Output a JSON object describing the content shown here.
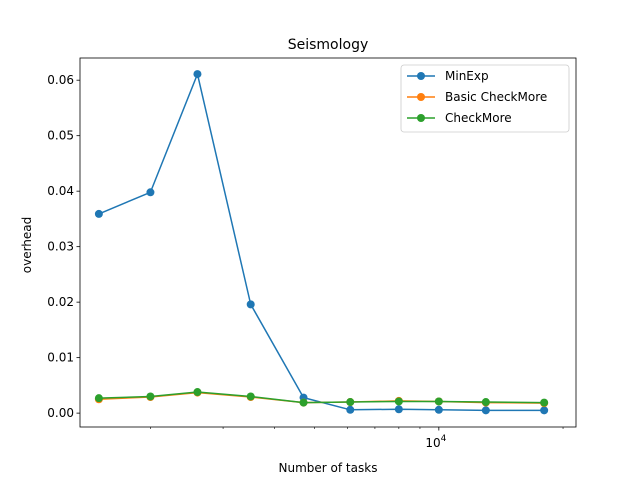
{
  "chart_data": {
    "type": "line",
    "title": "Seismology",
    "xlabel": "Number of tasks",
    "ylabel": "overhead",
    "xscale": "log",
    "xlim": [
      1350,
      21500
    ],
    "ylim": [
      -0.0025,
      0.064
    ],
    "yticks": [
      0.0,
      0.01,
      0.02,
      0.03,
      0.04,
      0.05,
      0.06
    ],
    "ytick_labels": [
      "0.00",
      "0.01",
      "0.02",
      "0.03",
      "0.04",
      "0.05",
      "0.06"
    ],
    "xticks_major": [
      10000
    ],
    "xtick_major_labels": [
      {
        "base": "10",
        "exp": "4"
      }
    ],
    "xticks_minor": [
      2000,
      3000,
      4000,
      5000,
      6000,
      7000,
      8000,
      9000,
      20000
    ],
    "x": [
      1500,
      2000,
      2500,
      3000,
      3500,
      4000,
      6000,
      8000,
      10000,
      12000
    ],
    "legend_position": "top-right",
    "grid": false,
    "series": [
      {
        "name": "MinExp",
        "color": "#1f77b4",
        "x": [
          1500,
          2000,
          2600,
          3500,
          4700,
          6100,
          8000,
          10000,
          13000,
          18000
        ],
        "values": [
          0.0359,
          0.0398,
          0.0611,
          0.0196,
          0.0028,
          0.0006,
          0.0007,
          0.0006,
          0.0005,
          0.0005
        ]
      },
      {
        "name": "Basic CheckMore",
        "color": "#ff7f0e",
        "x": [
          1500,
          2000,
          2600,
          3500,
          4700,
          6100,
          8000,
          10000,
          13000,
          18000
        ],
        "values": [
          0.0025,
          0.0029,
          0.0037,
          0.0029,
          0.0019,
          0.002,
          0.0022,
          0.0021,
          0.0019,
          0.0018
        ]
      },
      {
        "name": "CheckMore",
        "color": "#2ca02c",
        "x": [
          1500,
          2000,
          2600,
          3500,
          4700,
          6100,
          8000,
          10000,
          13000,
          18000
        ],
        "values": [
          0.0027,
          0.003,
          0.0038,
          0.003,
          0.0019,
          0.002,
          0.0021,
          0.0021,
          0.002,
          0.0019
        ]
      }
    ]
  }
}
